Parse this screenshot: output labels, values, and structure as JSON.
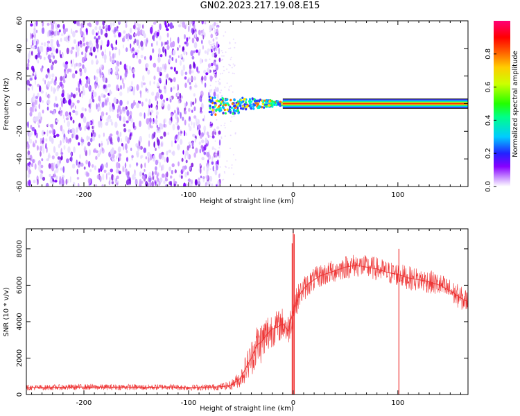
{
  "figure_title": "GN02.2023.217.19.08.E15",
  "colors": {
    "line": "#ee3333",
    "axis": "#000000",
    "background": "#ffffff"
  },
  "chart_data": [
    {
      "type": "heatmap",
      "title": "GN02.2023.217.19.08.E15",
      "xlabel": "Height of straight line (km)",
      "ylabel": "Frequency (Hz)",
      "xlim": [
        -255,
        167
      ],
      "ylim": [
        -60,
        60
      ],
      "xticks": [
        -200,
        -100,
        0,
        100
      ],
      "yticks": [
        60,
        40,
        20,
        0,
        -20,
        -40,
        -60
      ],
      "colorbar": {
        "label": "Normalized spectral amplitude",
        "range": [
          0,
          1
        ],
        "ticks": [
          "0.0",
          "0.2",
          "0.4",
          "0.6",
          "0.8"
        ],
        "colormap": "white-purple-blue-cyan-green-yellow-orange-red-magenta"
      },
      "regions": [
        {
          "description": "broadband low-amplitude noise",
          "x": [
            -255,
            -70
          ],
          "freq": [
            -60,
            60
          ],
          "amplitude": [
            0.05,
            0.3
          ]
        },
        {
          "description": "transition burst",
          "x": [
            -80,
            -10
          ],
          "freq": [
            -12,
            12
          ],
          "amplitude": [
            0.2,
            0.6
          ]
        },
        {
          "description": "narrow tone",
          "x": [
            -10,
            167
          ],
          "freq": [
            -1,
            1
          ],
          "amplitude": [
            0.9,
            1.0
          ]
        }
      ],
      "grid": false
    },
    {
      "type": "line",
      "xlabel": "Height of straight line (km)",
      "ylabel": "SNR (10 * v/v)",
      "xlim": [
        -255,
        167
      ],
      "ylim": [
        0,
        9100
      ],
      "xticks": [
        -200,
        -100,
        0,
        100
      ],
      "yticks": [
        0,
        2000,
        4000,
        6000,
        8000
      ],
      "grid": false,
      "series": [
        {
          "color": "#ee3333",
          "x": [
            -255,
            -240,
            -220,
            -200,
            -180,
            -160,
            -140,
            -120,
            -100,
            -80,
            -70,
            -60,
            -50,
            -45,
            -40,
            -35,
            -30,
            -25,
            -20,
            -15,
            -10,
            -5,
            0,
            5,
            10,
            15,
            20,
            25,
            30,
            40,
            50,
            60,
            70,
            80,
            90,
            100,
            110,
            120,
            130,
            140,
            150,
            160,
            167
          ],
          "values": [
            380,
            380,
            400,
            410,
            400,
            410,
            390,
            420,
            380,
            400,
            420,
            500,
            900,
            1500,
            2000,
            2700,
            2900,
            3300,
            3600,
            3700,
            3900,
            3500,
            4600,
            5400,
            5800,
            6100,
            6300,
            6500,
            6600,
            6800,
            7000,
            7100,
            7000,
            6900,
            6700,
            6600,
            6400,
            6300,
            6200,
            6000,
            5700,
            5300,
            5100
          ],
          "noise_band": [
            150,
            150,
            160,
            160,
            160,
            160,
            160,
            160,
            160,
            170,
            180,
            250,
            500,
            800,
            1000,
            1200,
            1200,
            1200,
            1000,
            900,
            900,
            900,
            900,
            700,
            700,
            650,
            650,
            650,
            650,
            650,
            650,
            650,
            650,
            650,
            650,
            650,
            650,
            650,
            650,
            650,
            650,
            650,
            650
          ]
        }
      ],
      "annotations": [
        {
          "description": "tall spikes",
          "x": [
            -1,
            0,
            1
          ],
          "y": [
            8300,
            9100,
            8800
          ]
        },
        {
          "description": "spike",
          "x": [
            101
          ],
          "y": [
            8000
          ]
        }
      ]
    }
  ]
}
